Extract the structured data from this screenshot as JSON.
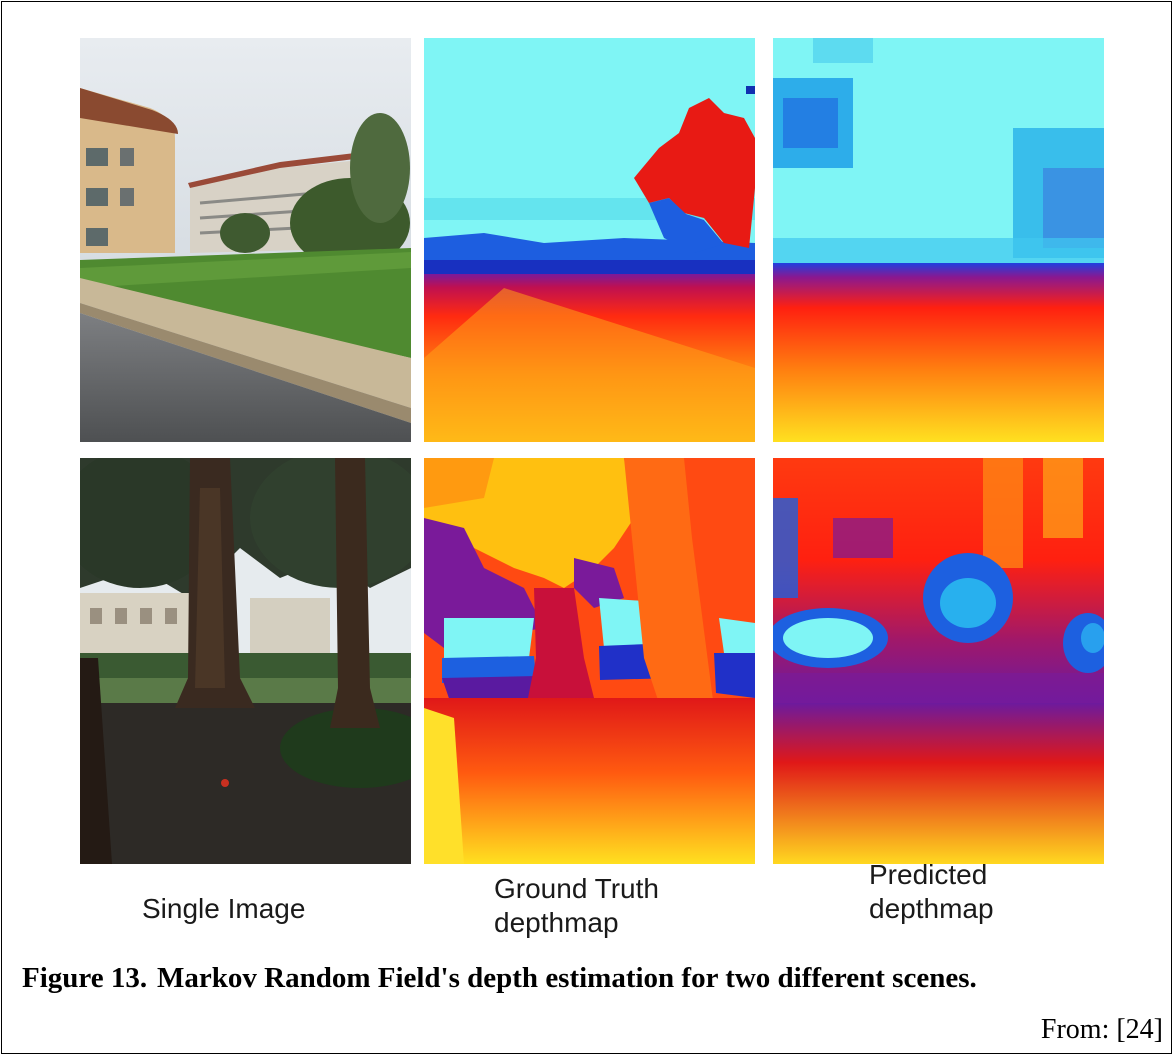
{
  "figure": {
    "panels": [
      {
        "row": "top",
        "kind": "photo",
        "subject": "campus buildings with lawn and curb"
      },
      {
        "row": "top",
        "kind": "ground-truth-depthmap"
      },
      {
        "row": "top",
        "kind": "predicted-depthmap"
      },
      {
        "row": "bottom",
        "kind": "photo",
        "subject": "forest with redwood trunks"
      },
      {
        "row": "bottom",
        "kind": "ground-truth-depthmap"
      },
      {
        "row": "bottom",
        "kind": "predicted-depthmap"
      }
    ],
    "column_labels": {
      "single": "Single Image",
      "ground_truth": "Ground Truth\ndepthmap",
      "predicted": "Predicted\ndepthmap"
    },
    "colors": {
      "near": "#ffe000",
      "mid": "#ff3010",
      "far_mid": "#8018a0",
      "far": "#1040e0",
      "sky": "#7ff5f5"
    }
  },
  "caption": {
    "number": "Figure 13.",
    "text": "Markov Random Field's depth estimation for two different scenes."
  },
  "source": "From: [24]"
}
